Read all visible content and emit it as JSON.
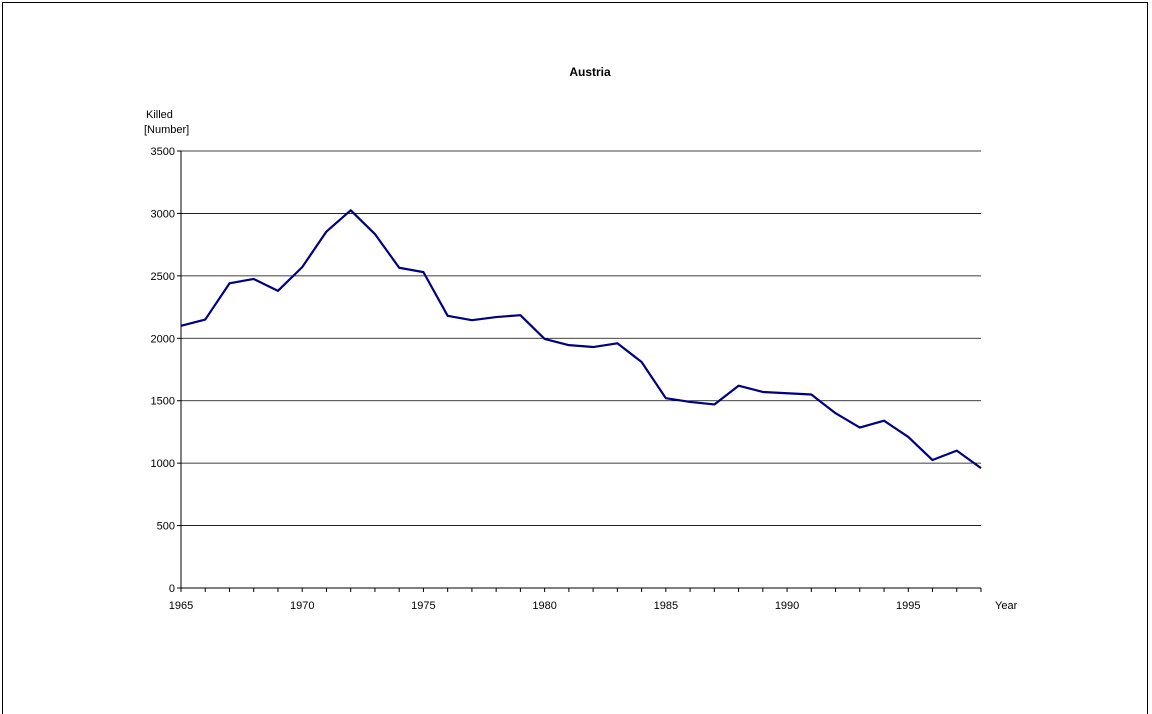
{
  "chart_data": {
    "type": "line",
    "title": "Austria",
    "ylabel_lines": [
      "Killed",
      "[Number]"
    ],
    "xlabel": "Year",
    "xlim": [
      1965,
      1998
    ],
    "ylim": [
      0,
      3500
    ],
    "y_ticks": [
      0,
      500,
      1000,
      1500,
      2000,
      2500,
      3000,
      3500
    ],
    "x_tick_labels": [
      1965,
      1970,
      1975,
      1980,
      1985,
      1990,
      1995
    ],
    "grid": true,
    "line_color": "#000080",
    "series": [
      {
        "x": [
          1965,
          1966,
          1967,
          1968,
          1969,
          1970,
          1971,
          1972,
          1973,
          1974,
          1975,
          1976,
          1977,
          1978,
          1979,
          1980,
          1981,
          1982,
          1983,
          1984,
          1985,
          1986,
          1987,
          1988,
          1989,
          1990,
          1991,
          1992,
          1993,
          1994,
          1995,
          1996,
          1997,
          1998
        ],
        "values": [
          2100,
          2150,
          2440,
          2475,
          2380,
          2570,
          2855,
          3025,
          2835,
          2565,
          2530,
          2180,
          2145,
          2170,
          2185,
          1995,
          1945,
          1930,
          1960,
          1810,
          1520,
          1490,
          1470,
          1620,
          1570,
          1560,
          1550,
          1400,
          1285,
          1340,
          1210,
          1025,
          1100,
          960
        ]
      }
    ]
  }
}
